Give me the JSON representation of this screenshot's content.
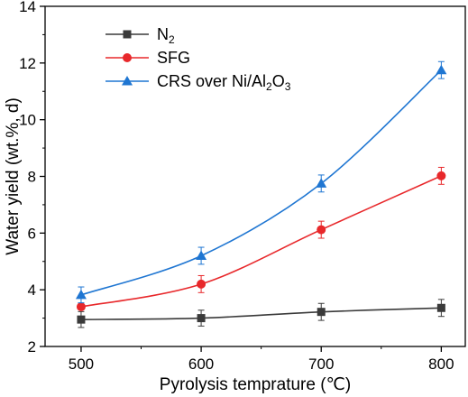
{
  "chart_data": {
    "type": "line",
    "xlabel": "Pyrolysis temprature (℃)",
    "ylabel": "Water yield (wt.%, d)",
    "x": [
      500,
      600,
      700,
      800
    ],
    "xlim": [
      470,
      820
    ],
    "ylim": [
      2,
      14
    ],
    "xticks": [
      500,
      600,
      700,
      800
    ],
    "yticks": [
      2,
      4,
      6,
      8,
      10,
      12,
      14
    ],
    "grid": false,
    "legend_position": "top-left",
    "series": [
      {
        "name": "N2",
        "label_main": "N",
        "label_sub": "2",
        "label_tail": "",
        "color": "#3a3a3a",
        "marker": "square",
        "values": [
          2.95,
          3.0,
          3.22,
          3.36
        ],
        "errors": [
          0.28,
          0.28,
          0.3,
          0.3
        ]
      },
      {
        "name": "SFG",
        "label_main": "SFG",
        "label_sub": "",
        "label_tail": "",
        "color": "#e8282b",
        "marker": "circle",
        "values": [
          3.4,
          4.2,
          6.12,
          8.02
        ],
        "errors": [
          0.1,
          0.3,
          0.3,
          0.3
        ]
      },
      {
        "name": "CRS over Ni/Al2O3",
        "label_main": "CRS over Ni/Al",
        "label_sub": "2",
        "label_mid": "O",
        "label_sub2": "3",
        "color": "#1f76d2",
        "marker": "triangle",
        "values": [
          3.82,
          5.2,
          7.75,
          11.75
        ],
        "errors": [
          0.28,
          0.3,
          0.3,
          0.3
        ]
      }
    ]
  }
}
